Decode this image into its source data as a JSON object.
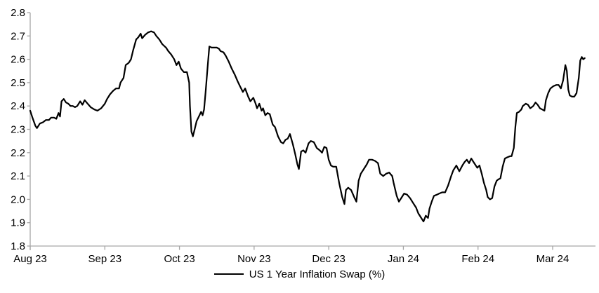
{
  "chart_data": {
    "type": "line",
    "title": "",
    "legend_position": "bottom-center",
    "grid": false,
    "series_name": "US 1 Year Inflation Swap (%)",
    "line_color": "#000000",
    "axis_color": "#a6a6a6",
    "text_color": "#000000",
    "ylim": [
      1.8,
      2.8
    ],
    "y_ticks": [
      2.8,
      2.7,
      2.6,
      2.5,
      2.4,
      2.3,
      2.2,
      2.1,
      2.0,
      1.9,
      1.8
    ],
    "x_tick_labels": [
      "Aug 23",
      "Sep 23",
      "Oct 23",
      "Nov 23",
      "Dec 23",
      "Jan 24",
      "Feb 24",
      "Mar 24"
    ],
    "x_unit": "months from Aug 23 tick",
    "points": [
      [
        0.0,
        2.38
      ],
      [
        0.03,
        2.35
      ],
      [
        0.07,
        2.315
      ],
      [
        0.09,
        2.305
      ],
      [
        0.13,
        2.325
      ],
      [
        0.17,
        2.33
      ],
      [
        0.21,
        2.34
      ],
      [
        0.25,
        2.34
      ],
      [
        0.28,
        2.35
      ],
      [
        0.32,
        2.35
      ],
      [
        0.35,
        2.345
      ],
      [
        0.38,
        2.37
      ],
      [
        0.4,
        2.355
      ],
      [
        0.42,
        2.42
      ],
      [
        0.45,
        2.43
      ],
      [
        0.48,
        2.415
      ],
      [
        0.51,
        2.41
      ],
      [
        0.54,
        2.4
      ],
      [
        0.57,
        2.4
      ],
      [
        0.6,
        2.395
      ],
      [
        0.63,
        2.4
      ],
      [
        0.67,
        2.42
      ],
      [
        0.7,
        2.405
      ],
      [
        0.73,
        2.425
      ],
      [
        0.77,
        2.41
      ],
      [
        0.81,
        2.395
      ],
      [
        0.86,
        2.385
      ],
      [
        0.9,
        2.38
      ],
      [
        0.95,
        2.39
      ],
      [
        1.0,
        2.41
      ],
      [
        1.03,
        2.43
      ],
      [
        1.07,
        2.45
      ],
      [
        1.11,
        2.465
      ],
      [
        1.15,
        2.475
      ],
      [
        1.19,
        2.475
      ],
      [
        1.21,
        2.5
      ],
      [
        1.25,
        2.52
      ],
      [
        1.28,
        2.575
      ],
      [
        1.32,
        2.585
      ],
      [
        1.35,
        2.6
      ],
      [
        1.38,
        2.64
      ],
      [
        1.42,
        2.685
      ],
      [
        1.45,
        2.695
      ],
      [
        1.48,
        2.71
      ],
      [
        1.5,
        2.69
      ],
      [
        1.54,
        2.705
      ],
      [
        1.58,
        2.715
      ],
      [
        1.62,
        2.72
      ],
      [
        1.66,
        2.715
      ],
      [
        1.69,
        2.7
      ],
      [
        1.73,
        2.685
      ],
      [
        1.77,
        2.665
      ],
      [
        1.82,
        2.65
      ],
      [
        1.85,
        2.635
      ],
      [
        1.89,
        2.62
      ],
      [
        1.93,
        2.6
      ],
      [
        1.96,
        2.575
      ],
      [
        1.99,
        2.59
      ],
      [
        2.02,
        2.56
      ],
      [
        2.06,
        2.545
      ],
      [
        2.1,
        2.545
      ],
      [
        2.13,
        2.5
      ],
      [
        2.14,
        2.4
      ],
      [
        2.16,
        2.29
      ],
      [
        2.18,
        2.27
      ],
      [
        2.2,
        2.295
      ],
      [
        2.23,
        2.335
      ],
      [
        2.26,
        2.355
      ],
      [
        2.29,
        2.375
      ],
      [
        2.31,
        2.36
      ],
      [
        2.33,
        2.385
      ],
      [
        2.35,
        2.46
      ],
      [
        2.38,
        2.58
      ],
      [
        2.4,
        2.655
      ],
      [
        2.43,
        2.65
      ],
      [
        2.46,
        2.65
      ],
      [
        2.5,
        2.65
      ],
      [
        2.53,
        2.645
      ],
      [
        2.55,
        2.635
      ],
      [
        2.59,
        2.63
      ],
      [
        2.62,
        2.615
      ],
      [
        2.66,
        2.59
      ],
      [
        2.7,
        2.56
      ],
      [
        2.74,
        2.535
      ],
      [
        2.78,
        2.505
      ],
      [
        2.81,
        2.485
      ],
      [
        2.85,
        2.46
      ],
      [
        2.88,
        2.475
      ],
      [
        2.92,
        2.44
      ],
      [
        2.95,
        2.42
      ],
      [
        2.99,
        2.435
      ],
      [
        3.02,
        2.41
      ],
      [
        3.04,
        2.39
      ],
      [
        3.07,
        2.41
      ],
      [
        3.1,
        2.38
      ],
      [
        3.12,
        2.39
      ],
      [
        3.15,
        2.36
      ],
      [
        3.18,
        2.37
      ],
      [
        3.21,
        2.365
      ],
      [
        3.25,
        2.32
      ],
      [
        3.28,
        2.31
      ],
      [
        3.32,
        2.27
      ],
      [
        3.36,
        2.245
      ],
      [
        3.39,
        2.24
      ],
      [
        3.42,
        2.255
      ],
      [
        3.45,
        2.26
      ],
      [
        3.48,
        2.28
      ],
      [
        3.52,
        2.235
      ],
      [
        3.55,
        2.195
      ],
      [
        3.58,
        2.15
      ],
      [
        3.6,
        2.13
      ],
      [
        3.63,
        2.205
      ],
      [
        3.66,
        2.21
      ],
      [
        3.69,
        2.2
      ],
      [
        3.73,
        2.24
      ],
      [
        3.76,
        2.25
      ],
      [
        3.8,
        2.245
      ],
      [
        3.84,
        2.22
      ],
      [
        3.88,
        2.21
      ],
      [
        3.91,
        2.2
      ],
      [
        3.94,
        2.225
      ],
      [
        3.97,
        2.22
      ],
      [
        4.0,
        2.17
      ],
      [
        4.03,
        2.145
      ],
      [
        4.06,
        2.14
      ],
      [
        4.1,
        2.14
      ],
      [
        4.14,
        2.07
      ],
      [
        4.18,
        2.01
      ],
      [
        4.21,
        1.98
      ],
      [
        4.23,
        2.04
      ],
      [
        4.26,
        2.05
      ],
      [
        4.3,
        2.04
      ],
      [
        4.34,
        2.01
      ],
      [
        4.37,
        1.99
      ],
      [
        4.4,
        2.08
      ],
      [
        4.43,
        2.11
      ],
      [
        4.47,
        2.13
      ],
      [
        4.51,
        2.15
      ],
      [
        4.54,
        2.17
      ],
      [
        4.58,
        2.17
      ],
      [
        4.62,
        2.165
      ],
      [
        4.66,
        2.155
      ],
      [
        4.69,
        2.11
      ],
      [
        4.73,
        2.1
      ],
      [
        4.77,
        2.11
      ],
      [
        4.81,
        2.115
      ],
      [
        4.85,
        2.1
      ],
      [
        4.87,
        2.07
      ],
      [
        4.91,
        2.015
      ],
      [
        4.94,
        1.99
      ],
      [
        4.98,
        2.01
      ],
      [
        5.01,
        2.025
      ],
      [
        5.05,
        2.02
      ],
      [
        5.09,
        2.005
      ],
      [
        5.13,
        1.985
      ],
      [
        5.17,
        1.965
      ],
      [
        5.2,
        1.94
      ],
      [
        5.24,
        1.92
      ],
      [
        5.27,
        1.905
      ],
      [
        5.3,
        1.93
      ],
      [
        5.33,
        1.92
      ],
      [
        5.35,
        1.96
      ],
      [
        5.38,
        1.99
      ],
      [
        5.41,
        2.015
      ],
      [
        5.45,
        2.02
      ],
      [
        5.48,
        2.025
      ],
      [
        5.52,
        2.03
      ],
      [
        5.56,
        2.03
      ],
      [
        5.6,
        2.06
      ],
      [
        5.64,
        2.1
      ],
      [
        5.67,
        2.125
      ],
      [
        5.71,
        2.145
      ],
      [
        5.75,
        2.12
      ],
      [
        5.79,
        2.145
      ],
      [
        5.82,
        2.16
      ],
      [
        5.85,
        2.17
      ],
      [
        5.88,
        2.155
      ],
      [
        5.91,
        2.175
      ],
      [
        5.94,
        2.16
      ],
      [
        5.96,
        2.15
      ],
      [
        5.99,
        2.135
      ],
      [
        6.02,
        2.145
      ],
      [
        6.05,
        2.11
      ],
      [
        6.08,
        2.07
      ],
      [
        6.11,
        2.04
      ],
      [
        6.13,
        2.01
      ],
      [
        6.16,
        2.0
      ],
      [
        6.19,
        2.005
      ],
      [
        6.22,
        2.055
      ],
      [
        6.25,
        2.08
      ],
      [
        6.27,
        2.085
      ],
      [
        6.3,
        2.09
      ],
      [
        6.33,
        2.14
      ],
      [
        6.36,
        2.175
      ],
      [
        6.39,
        2.18
      ],
      [
        6.43,
        2.185
      ],
      [
        6.45,
        2.185
      ],
      [
        6.48,
        2.22
      ],
      [
        6.5,
        2.31
      ],
      [
        6.52,
        2.37
      ],
      [
        6.55,
        2.375
      ],
      [
        6.58,
        2.385
      ],
      [
        6.6,
        2.4
      ],
      [
        6.64,
        2.41
      ],
      [
        6.67,
        2.405
      ],
      [
        6.7,
        2.39
      ],
      [
        6.74,
        2.4
      ],
      [
        6.77,
        2.415
      ],
      [
        6.8,
        2.405
      ],
      [
        6.83,
        2.39
      ],
      [
        6.86,
        2.385
      ],
      [
        6.89,
        2.38
      ],
      [
        6.91,
        2.425
      ],
      [
        6.94,
        2.455
      ],
      [
        6.97,
        2.475
      ],
      [
        7.01,
        2.485
      ],
      [
        7.05,
        2.49
      ],
      [
        7.08,
        2.49
      ],
      [
        7.11,
        2.475
      ],
      [
        7.14,
        2.51
      ],
      [
        7.17,
        2.575
      ],
      [
        7.19,
        2.55
      ],
      [
        7.21,
        2.47
      ],
      [
        7.23,
        2.445
      ],
      [
        7.26,
        2.44
      ],
      [
        7.29,
        2.44
      ],
      [
        7.32,
        2.455
      ],
      [
        7.35,
        2.52
      ],
      [
        7.37,
        2.595
      ],
      [
        7.39,
        2.61
      ],
      [
        7.41,
        2.6
      ],
      [
        7.43,
        2.605
      ]
    ]
  },
  "legend": {
    "label": "US 1 Year Inflation Swap (%)"
  }
}
